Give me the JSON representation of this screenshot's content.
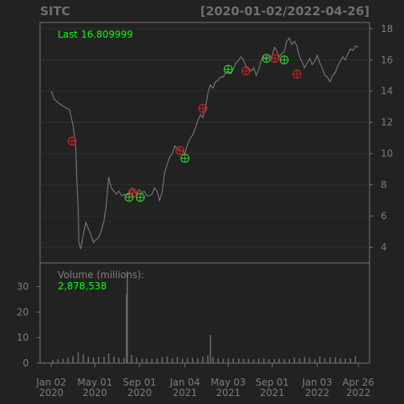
{
  "chart_data": {
    "type": "line",
    "symbol": "SITC",
    "date_range_label": "[2020-01-02/2022-04-26]",
    "theme": {
      "background": "#222222",
      "panel_border": "#777777",
      "price_line": "#7a7a7a",
      "volume_bar": "#6a6a6a",
      "grid": "#2f2f2f",
      "label": "#808080",
      "accent_green": "#00ff00",
      "buy_marker": "#33cc33",
      "sell_marker": "#cc2222"
    },
    "price_panel": {
      "annotation_label": "Last",
      "last_value": "16.809999",
      "y_ticks": [
        4,
        6,
        8,
        10,
        12,
        14,
        16,
        18
      ],
      "ylim": [
        3.0,
        18.4
      ],
      "grid": true,
      "series": {
        "name": "close",
        "points": [
          [
            "2020-01-02",
            14.0
          ],
          [
            "2020-01-10",
            13.5
          ],
          [
            "2020-01-24",
            13.2
          ],
          [
            "2020-02-07",
            13.0
          ],
          [
            "2020-02-21",
            12.8
          ],
          [
            "2020-03-02",
            11.8
          ],
          [
            "2020-03-09",
            10.5
          ],
          [
            "2020-03-12",
            8.5
          ],
          [
            "2020-03-16",
            6.5
          ],
          [
            "2020-03-18",
            4.3
          ],
          [
            "2020-03-23",
            3.9
          ],
          [
            "2020-03-30",
            4.8
          ],
          [
            "2020-04-06",
            5.6
          ],
          [
            "2020-04-13",
            5.2
          ],
          [
            "2020-04-20",
            4.8
          ],
          [
            "2020-04-27",
            4.3
          ],
          [
            "2020-05-04",
            4.5
          ],
          [
            "2020-05-11",
            4.6
          ],
          [
            "2020-05-18",
            5.0
          ],
          [
            "2020-05-26",
            5.7
          ],
          [
            "2020-06-01",
            6.6
          ],
          [
            "2020-06-08",
            8.5
          ],
          [
            "2020-06-15",
            7.8
          ],
          [
            "2020-06-22",
            7.6
          ],
          [
            "2020-06-29",
            7.4
          ],
          [
            "2020-07-06",
            7.6
          ],
          [
            "2020-07-13",
            7.3
          ],
          [
            "2020-07-20",
            7.4
          ],
          [
            "2020-07-27",
            7.3
          ],
          [
            "2020-08-03",
            7.5
          ],
          [
            "2020-08-10",
            7.8
          ],
          [
            "2020-08-17",
            7.6
          ],
          [
            "2020-08-24",
            7.4
          ],
          [
            "2020-08-31",
            7.7
          ],
          [
            "2020-09-08",
            7.5
          ],
          [
            "2020-09-14",
            7.6
          ],
          [
            "2020-09-21",
            7.3
          ],
          [
            "2020-09-28",
            7.3
          ],
          [
            "2020-10-05",
            7.4
          ],
          [
            "2020-10-12",
            7.8
          ],
          [
            "2020-10-19",
            7.6
          ],
          [
            "2020-10-26",
            7.0
          ],
          [
            "2020-11-02",
            7.5
          ],
          [
            "2020-11-09",
            8.8
          ],
          [
            "2020-11-16",
            9.3
          ],
          [
            "2020-11-23",
            9.8
          ],
          [
            "2020-11-30",
            10.0
          ],
          [
            "2020-12-07",
            10.5
          ],
          [
            "2020-12-14",
            10.3
          ],
          [
            "2020-12-21",
            10.2
          ],
          [
            "2020-12-28",
            10.2
          ],
          [
            "2021-01-04",
            10.0
          ],
          [
            "2021-01-11",
            10.6
          ],
          [
            "2021-01-19",
            11.0
          ],
          [
            "2021-01-25",
            11.2
          ],
          [
            "2021-02-01",
            11.6
          ],
          [
            "2021-02-08",
            12.1
          ],
          [
            "2021-02-16",
            12.5
          ],
          [
            "2021-02-22",
            12.3
          ],
          [
            "2021-03-01",
            12.9
          ],
          [
            "2021-03-08",
            13.9
          ],
          [
            "2021-03-15",
            14.4
          ],
          [
            "2021-03-22",
            14.2
          ],
          [
            "2021-03-29",
            14.6
          ],
          [
            "2021-04-05",
            14.7
          ],
          [
            "2021-04-12",
            14.9
          ],
          [
            "2021-04-19",
            14.9
          ],
          [
            "2021-04-26",
            15.2
          ],
          [
            "2021-05-03",
            15.3
          ],
          [
            "2021-05-10",
            15.1
          ],
          [
            "2021-05-17",
            15.4
          ],
          [
            "2021-05-24",
            15.8
          ],
          [
            "2021-06-01",
            16.0
          ],
          [
            "2021-06-07",
            16.2
          ],
          [
            "2021-06-14",
            16.0
          ],
          [
            "2021-06-21",
            15.6
          ],
          [
            "2021-06-28",
            15.4
          ],
          [
            "2021-07-06",
            15.3
          ],
          [
            "2021-07-12",
            15.5
          ],
          [
            "2021-07-19",
            15.0
          ],
          [
            "2021-07-26",
            15.4
          ],
          [
            "2021-08-02",
            16.0
          ],
          [
            "2021-08-09",
            16.2
          ],
          [
            "2021-08-16",
            16.0
          ],
          [
            "2021-08-23",
            16.3
          ],
          [
            "2021-08-30",
            16.1
          ],
          [
            "2021-09-07",
            16.8
          ],
          [
            "2021-09-13",
            16.6
          ],
          [
            "2021-09-20",
            16.2
          ],
          [
            "2021-09-27",
            16.4
          ],
          [
            "2021-10-04",
            16.5
          ],
          [
            "2021-10-11",
            17.2
          ],
          [
            "2021-10-18",
            17.4
          ],
          [
            "2021-10-25",
            17.0
          ],
          [
            "2021-11-01",
            17.2
          ],
          [
            "2021-11-08",
            16.9
          ],
          [
            "2021-11-15",
            16.2
          ],
          [
            "2021-11-22",
            15.9
          ],
          [
            "2021-11-29",
            15.5
          ],
          [
            "2021-12-06",
            15.8
          ],
          [
            "2021-12-13",
            16.1
          ],
          [
            "2021-12-20",
            15.7
          ],
          [
            "2021-12-27",
            15.9
          ],
          [
            "2022-01-03",
            16.3
          ],
          [
            "2022-01-10",
            15.8
          ],
          [
            "2022-01-18",
            15.4
          ],
          [
            "2022-01-24",
            15.0
          ],
          [
            "2022-01-31",
            14.9
          ],
          [
            "2022-02-07",
            14.6
          ],
          [
            "2022-02-14",
            15.0
          ],
          [
            "2022-02-22",
            15.2
          ],
          [
            "2022-02-28",
            15.6
          ],
          [
            "2022-03-07",
            15.9
          ],
          [
            "2022-03-14",
            16.2
          ],
          [
            "2022-03-21",
            16.0
          ],
          [
            "2022-03-28",
            16.4
          ],
          [
            "2022-04-04",
            16.7
          ],
          [
            "2022-04-11",
            16.6
          ],
          [
            "2022-04-18",
            16.9
          ],
          [
            "2022-04-26",
            16.81
          ]
        ]
      },
      "markers": [
        {
          "date": "2020-02-28",
          "price": 10.8,
          "kind": "sell"
        },
        {
          "date": "2020-08-13",
          "price": 7.5,
          "kind": "sell"
        },
        {
          "date": "2020-08-03",
          "price": 7.2,
          "kind": "buy"
        },
        {
          "date": "2020-09-03",
          "price": 7.2,
          "kind": "buy"
        },
        {
          "date": "2020-12-21",
          "price": 10.2,
          "kind": "sell"
        },
        {
          "date": "2021-01-04",
          "price": 9.7,
          "kind": "buy"
        },
        {
          "date": "2021-02-22",
          "price": 12.9,
          "kind": "sell"
        },
        {
          "date": "2021-05-03",
          "price": 15.4,
          "kind": "buy"
        },
        {
          "date": "2021-06-21",
          "price": 15.3,
          "kind": "sell"
        },
        {
          "date": "2021-08-16",
          "price": 16.1,
          "kind": "buy"
        },
        {
          "date": "2021-09-08",
          "price": 16.1,
          "kind": "sell"
        },
        {
          "date": "2021-10-04",
          "price": 16.0,
          "kind": "buy"
        },
        {
          "date": "2021-11-08",
          "price": 15.1,
          "kind": "sell"
        }
      ]
    },
    "volume_panel": {
      "annotation_label": "Volume (millions):",
      "last_value": "2,878,538",
      "y_ticks": [
        0,
        10,
        20,
        30
      ],
      "ylim": [
        0,
        38
      ],
      "bars": [
        [
          "2020-01-06",
          1.2
        ],
        [
          "2020-01-20",
          1.5
        ],
        [
          "2020-02-03",
          1.8
        ],
        [
          "2020-02-17",
          2.1
        ],
        [
          "2020-03-02",
          2.8
        ],
        [
          "2020-03-16",
          4.2
        ],
        [
          "2020-03-30",
          3.5
        ],
        [
          "2020-04-13",
          2.6
        ],
        [
          "2020-04-27",
          2.2
        ],
        [
          "2020-05-11",
          2.4
        ],
        [
          "2020-05-26",
          2.5
        ],
        [
          "2020-06-08",
          3.8
        ],
        [
          "2020-06-22",
          2.6
        ],
        [
          "2020-07-06",
          2.1
        ],
        [
          "2020-07-20",
          2.0
        ],
        [
          "2020-07-27",
          27.0
        ],
        [
          "2020-07-29",
          36.0
        ],
        [
          "2020-08-10",
          3.2
        ],
        [
          "2020-08-24",
          2.2
        ],
        [
          "2020-09-08",
          1.9
        ],
        [
          "2020-09-21",
          1.8
        ],
        [
          "2020-10-05",
          1.7
        ],
        [
          "2020-10-19",
          1.8
        ],
        [
          "2020-11-02",
          2.3
        ],
        [
          "2020-11-16",
          2.6
        ],
        [
          "2020-11-30",
          2.0
        ],
        [
          "2020-12-14",
          2.4
        ],
        [
          "2020-12-28",
          1.7
        ],
        [
          "2021-01-11",
          2.0
        ],
        [
          "2021-01-25",
          2.2
        ],
        [
          "2021-02-08",
          1.9
        ],
        [
          "2021-02-22",
          2.5
        ],
        [
          "2021-03-08",
          3.0
        ],
        [
          "2021-03-15",
          11.0
        ],
        [
          "2021-03-22",
          2.4
        ],
        [
          "2021-04-05",
          1.9
        ],
        [
          "2021-04-19",
          1.7
        ],
        [
          "2021-05-03",
          2.0
        ],
        [
          "2021-05-17",
          1.8
        ],
        [
          "2021-06-01",
          1.9
        ],
        [
          "2021-06-14",
          1.7
        ],
        [
          "2021-06-28",
          1.6
        ],
        [
          "2021-07-12",
          1.5
        ],
        [
          "2021-07-26",
          1.8
        ],
        [
          "2021-08-09",
          1.9
        ],
        [
          "2021-08-23",
          1.5
        ],
        [
          "2021-09-07",
          1.6
        ],
        [
          "2021-09-20",
          1.7
        ],
        [
          "2021-10-04",
          1.5
        ],
        [
          "2021-10-18",
          1.6
        ],
        [
          "2021-11-01",
          2.2
        ],
        [
          "2021-11-15",
          1.9
        ],
        [
          "2021-11-29",
          2.4
        ],
        [
          "2021-12-13",
          2.0
        ],
        [
          "2021-12-27",
          1.5
        ],
        [
          "2022-01-10",
          2.6
        ],
        [
          "2022-01-24",
          2.0
        ],
        [
          "2022-02-07",
          2.1
        ],
        [
          "2022-02-22",
          2.3
        ],
        [
          "2022-03-07",
          2.0
        ],
        [
          "2022-03-21",
          1.8
        ],
        [
          "2022-04-04",
          1.9
        ],
        [
          "2022-04-18",
          2.8
        ]
      ]
    },
    "x_axis": {
      "start_date": "2020-01-02",
      "end_date": "2022-04-26",
      "tick_labels": [
        {
          "date": "2020-01-02",
          "line1": "Jan 02",
          "line2": "2020"
        },
        {
          "date": "2020-05-01",
          "line1": "May 01",
          "line2": "2020"
        },
        {
          "date": "2020-09-01",
          "line1": "Sep 01",
          "line2": "2020"
        },
        {
          "date": "2021-01-04",
          "line1": "Jan 04",
          "line2": "2021"
        },
        {
          "date": "2021-05-03",
          "line1": "May 03",
          "line2": "2021"
        },
        {
          "date": "2021-09-01",
          "line1": "Sep 01",
          "line2": "2021"
        },
        {
          "date": "2022-01-03",
          "line1": "Jan 03",
          "line2": "2022"
        },
        {
          "date": "2022-04-26",
          "line1": "Apr 26",
          "line2": "2022"
        }
      ]
    }
  }
}
